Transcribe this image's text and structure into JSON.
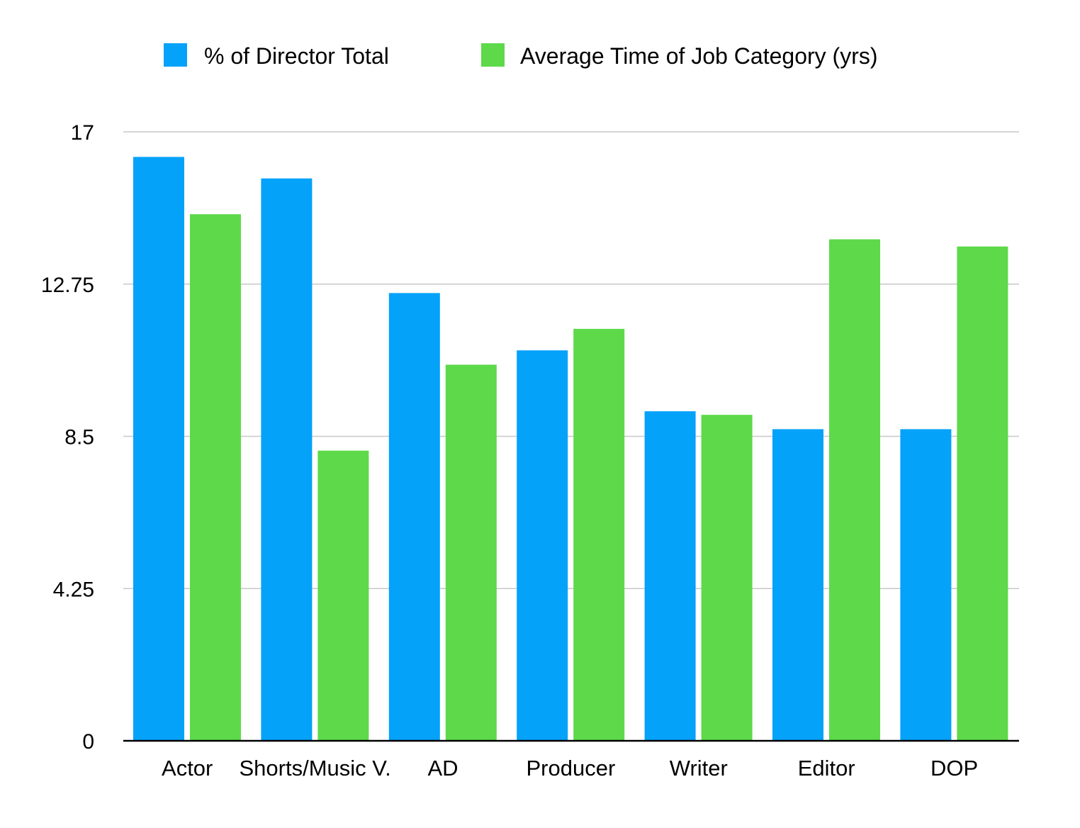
{
  "chart_data": {
    "type": "bar",
    "categories": [
      "Actor",
      "Shorts/Music V.",
      "AD",
      "Producer",
      "Writer",
      "Editor",
      "DOP"
    ],
    "series": [
      {
        "name": "% of Director Total",
        "color": "#05a2fa",
        "values": [
          16.3,
          15.7,
          12.5,
          10.9,
          9.2,
          8.7,
          8.7
        ]
      },
      {
        "name": "Average Time of Job Category (yrs)",
        "color": "#5dd94a",
        "values": [
          14.7,
          8.1,
          10.5,
          11.5,
          9.1,
          14.0,
          13.8
        ]
      }
    ],
    "yticks": [
      "0",
      "4.25",
      "8.5",
      "12.75",
      "17"
    ],
    "ylim": [
      0,
      17
    ],
    "grid": true,
    "legend": "top-center",
    "title": "",
    "xlabel": "",
    "ylabel": ""
  }
}
